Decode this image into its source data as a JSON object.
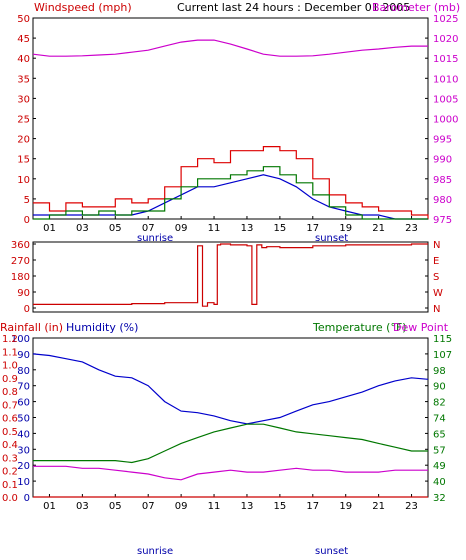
{
  "header": {
    "title": "Current last 24 hours : December 01 2005",
    "left_label": "Windspeed (mph)",
    "right_label": "Barometer (mb)"
  },
  "colors": {
    "wind": "#dd0000",
    "gust_green": "#007700",
    "avg_blue": "#0000cc",
    "barometer": "#cc00cc",
    "direction": "#cc0000",
    "humidity": "#0000cc",
    "temperature": "#007700",
    "dewpoint": "#cc00cc",
    "rainfall": "#cc0000",
    "frame": "#000000",
    "text_red": "#cc0000",
    "text_blue": "#0000aa",
    "text_green": "#007700",
    "text_magenta": "#cc00cc"
  },
  "chart_data": [
    {
      "type": "line",
      "panel": "wind-barometer",
      "x_tick_labels": [
        "01",
        "03",
        "05",
        "07",
        "09",
        "11",
        "13",
        "15",
        "17",
        "19",
        "21",
        "23"
      ],
      "sunrise_label": "sunrise",
      "sunset_label": "sunset",
      "y_left_label": "Windspeed (mph)",
      "y_left_ticks": [
        "0",
        "5",
        "10",
        "15",
        "20",
        "25",
        "30",
        "35",
        "40",
        "45",
        "50"
      ],
      "ylim_left": [
        0,
        50
      ],
      "y_right_label": "Barometer (mb)",
      "y_right_ticks": [
        "975",
        "980",
        "985",
        "990",
        "995",
        "1000",
        "1005",
        "1010",
        "1015",
        "1020",
        "1025"
      ],
      "ylim_right": [
        975,
        1025
      ],
      "series": [
        {
          "key": "barometer",
          "axis": "right",
          "x": [
            0,
            1,
            2,
            3,
            4,
            5,
            6,
            7,
            8,
            9,
            10,
            11,
            12,
            13,
            14,
            15,
            16,
            17,
            18,
            19,
            20,
            21,
            22,
            23,
            24
          ],
          "values": [
            1016,
            1015.5,
            1015.5,
            1015.6,
            1015.8,
            1016,
            1016.5,
            1017,
            1018,
            1019,
            1019.5,
            1019.5,
            1018.5,
            1017.3,
            1016,
            1015.5,
            1015.5,
            1015.6,
            1016,
            1016.5,
            1017,
            1017.3,
            1017.7,
            1018,
            1018
          ]
        },
        {
          "key": "wind_peak",
          "axis": "left",
          "x": [
            0,
            1,
            2,
            3,
            4,
            5,
            6,
            7,
            8,
            9,
            10,
            11,
            12,
            13,
            14,
            15,
            16,
            17,
            18,
            19,
            20,
            21,
            22,
            23,
            24
          ],
          "values": [
            4,
            2,
            4,
            3,
            3,
            5,
            4,
            5,
            8,
            13,
            15,
            14,
            17,
            17,
            18,
            17,
            15,
            10,
            6,
            4,
            3,
            2,
            2,
            1,
            0
          ]
        },
        {
          "key": "wind_average",
          "axis": "left",
          "x": [
            0,
            1,
            2,
            3,
            4,
            5,
            6,
            7,
            8,
            9,
            10,
            11,
            12,
            13,
            14,
            15,
            16,
            17,
            18,
            19,
            20,
            21,
            22,
            23,
            24
          ],
          "values": [
            1,
            1,
            1,
            1,
            1,
            1,
            1,
            2,
            4,
            6,
            8,
            8,
            9,
            10,
            11,
            10,
            8,
            5,
            3,
            2,
            1,
            1,
            0,
            0,
            0
          ]
        },
        {
          "key": "wind_gust",
          "axis": "left",
          "x": [
            0,
            1,
            2,
            3,
            4,
            5,
            6,
            7,
            8,
            9,
            10,
            11,
            12,
            13,
            14,
            15,
            16,
            17,
            18,
            19,
            20,
            21,
            22,
            23,
            24
          ],
          "values": [
            0,
            1,
            2,
            1,
            2,
            1,
            2,
            2,
            5,
            8,
            10,
            10,
            11,
            12,
            13,
            11,
            9,
            6,
            3,
            1,
            0,
            0,
            0,
            0,
            0
          ]
        }
      ]
    },
    {
      "type": "line",
      "panel": "wind-direction",
      "x_tick_labels": [
        "01",
        "03",
        "05",
        "07",
        "09",
        "11",
        "13",
        "15",
        "17",
        "19",
        "21",
        "23"
      ],
      "y_left_ticks": [
        "0",
        "90",
        "180",
        "270",
        "360"
      ],
      "ylim_left": [
        0,
        360
      ],
      "y_right_ticks": [
        "N",
        "W",
        "S",
        "E",
        "N"
      ],
      "series": [
        {
          "key": "direction",
          "x": [
            0,
            2,
            4,
            6,
            8,
            9,
            9.8,
            10,
            10.3,
            10.6,
            11,
            11.2,
            11.4,
            12,
            13,
            13.3,
            13.6,
            13.9,
            14.2,
            15,
            17,
            19,
            21,
            23,
            24
          ],
          "values": [
            20,
            20,
            20,
            25,
            30,
            30,
            30,
            350,
            10,
            30,
            20,
            355,
            360,
            355,
            350,
            20,
            355,
            340,
            345,
            340,
            350,
            355,
            355,
            360,
            360
          ]
        }
      ]
    },
    {
      "type": "line",
      "panel": "humidity-temperature",
      "x_tick_labels": [
        "01",
        "03",
        "05",
        "07",
        "09",
        "11",
        "13",
        "15",
        "17",
        "19",
        "21",
        "23"
      ],
      "sunrise_label": "sunrise",
      "sunset_label": "sunset",
      "rainfall_label": "Rainfall (in)",
      "humidity_label": "Humidity (%)",
      "temperature_label": "Temperature (°F)",
      "dewpoint_label": "Dew Point",
      "y_humidity_ticks": [
        "0",
        "10",
        "20",
        "30",
        "40",
        "50",
        "60",
        "70",
        "80",
        "90",
        "100"
      ],
      "ylim_humidity": [
        0,
        100
      ],
      "y_rain_ticks": [
        "0.0",
        "0.1",
        "0.2",
        "0.3",
        "0.4",
        "0.5",
        "0.6",
        "0.7",
        "0.8",
        "0.9",
        "1.0",
        "1.1",
        "1.2"
      ],
      "ylim_rain": [
        0,
        1.2
      ],
      "y_temp_ticks": [
        "32",
        "40",
        "49",
        "57",
        "65",
        "74",
        "82",
        "90",
        "98",
        "107",
        "115"
      ],
      "ylim_temp": [
        32,
        115
      ],
      "series": [
        {
          "key": "humidity",
          "axis": "humidity",
          "x": [
            0,
            1,
            2,
            3,
            4,
            5,
            6,
            7,
            8,
            9,
            10,
            11,
            12,
            13,
            14,
            15,
            16,
            17,
            18,
            19,
            20,
            21,
            22,
            23,
            24
          ],
          "values": [
            90,
            89,
            87,
            85,
            80,
            76,
            75,
            70,
            60,
            54,
            53,
            51,
            48,
            46,
            48,
            50,
            54,
            58,
            60,
            63,
            66,
            70,
            73,
            75,
            74
          ]
        },
        {
          "key": "temperature",
          "axis": "temp",
          "x": [
            0,
            1,
            2,
            3,
            4,
            5,
            6,
            7,
            8,
            9,
            10,
            11,
            12,
            13,
            14,
            15,
            16,
            17,
            18,
            19,
            20,
            21,
            22,
            23,
            24
          ],
          "values": [
            51,
            51,
            51,
            51,
            51,
            51,
            50,
            52,
            56,
            60,
            63,
            66,
            68,
            70,
            70,
            68,
            66,
            65,
            64,
            63,
            62,
            60,
            58,
            56,
            56
          ]
        },
        {
          "key": "dewpoint",
          "axis": "temp",
          "x": [
            0,
            1,
            2,
            3,
            4,
            5,
            6,
            7,
            8,
            9,
            10,
            11,
            12,
            13,
            14,
            15,
            16,
            17,
            18,
            19,
            20,
            21,
            22,
            23,
            24
          ],
          "values": [
            48,
            48,
            48,
            47,
            47,
            46,
            45,
            44,
            42,
            41,
            44,
            45,
            46,
            45,
            45,
            46,
            47,
            46,
            46,
            45,
            45,
            45,
            46,
            46,
            46
          ]
        },
        {
          "key": "rainfall",
          "axis": "rain",
          "x": [
            0,
            24
          ],
          "values": [
            0,
            0
          ]
        }
      ]
    }
  ]
}
